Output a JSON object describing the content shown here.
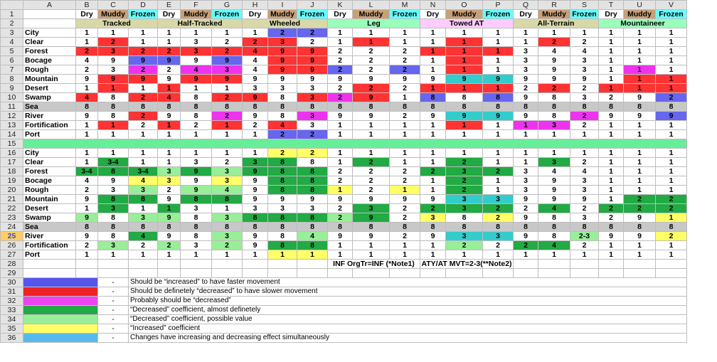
{
  "columns": [
    "A",
    "B",
    "C",
    "D",
    "E",
    "F",
    "G",
    "H",
    "I",
    "J",
    "K",
    "L",
    "M",
    "N",
    "O",
    "P",
    "Q",
    "R",
    "S",
    "T",
    "U",
    "V"
  ],
  "selected_row": 25,
  "palette": {
    "blue": "#6666ee",
    "red": "#ff3333",
    "magenta": "#ee33ee",
    "dgreen": "#22aa44",
    "lgreen": "#99ee99",
    "yellow": "#ffff66",
    "cyan": "#33cccc",
    "lcyan": "#66ccff",
    "gray": "#c8c8c8",
    "tan": "#c8a078",
    "header_cyan": "#66ffff",
    "lgreen_band": "#99ffbb",
    "pink_band": "#ffccff",
    "khaki": "#d8d8a8",
    "row15": "#66ee99",
    "legend_blue": "#5555ee",
    "legend_red": "#ee2222",
    "legend_magenta": "#ee44ee",
    "legend_dgreen": "#22aa44",
    "legend_lgreen": "#99ee99",
    "legend_yellow": "#ffff66",
    "legend_cyan": "#55bbee"
  },
  "row1": [
    "",
    "Dry",
    "Muddy",
    "Frozen",
    "Dry",
    "Muddy",
    "Frozen",
    "Dry",
    "Muddy",
    "Frozen",
    "Dry",
    "Muddy",
    "Frozen",
    "Dry",
    "Muddy",
    "Frozen",
    "Dry",
    "Muddy",
    "Frozen",
    "Dry",
    "Muddy",
    "Frozen"
  ],
  "groups": [
    {
      "label": "Tracked",
      "color": "#d8d8a8"
    },
    {
      "label": "Half-Tracked",
      "color": "#d8d8a8"
    },
    {
      "label": "Wheeled",
      "color": "#d8d8a8"
    },
    {
      "label": "Leg",
      "color": "#99ffbb"
    },
    {
      "label": "Towed AT",
      "color": "#ffccff"
    },
    {
      "label": "All-Terrain",
      "color": "#d8d8a8"
    },
    {
      "label": "Mountaineer",
      "color": "#99ffbb"
    }
  ],
  "terrains": [
    "City",
    "Clear",
    "Forest",
    "Bocage",
    "Rough",
    "Mountain",
    "Desert",
    "Swamp",
    "Sea",
    "River",
    "Fortification",
    "Port"
  ],
  "top": [
    [
      "1",
      "1",
      "1",
      "1",
      "1",
      "1",
      "1",
      "2",
      "2",
      "1",
      "1",
      "1",
      "1",
      "1",
      "1",
      "1",
      "1",
      "1",
      "1",
      "1",
      "1"
    ],
    [
      "1",
      "2",
      "1",
      "1",
      "3",
      "2",
      "2",
      "3",
      "2",
      "1",
      "1",
      "1",
      "1",
      "1",
      "1",
      "1",
      "2",
      "2",
      "1",
      "1",
      "1"
    ],
    [
      "2",
      "3",
      "2",
      "2",
      "3",
      "2",
      "4",
      "9",
      "9",
      "2",
      "2",
      "2",
      "1",
      "1",
      "1",
      "3",
      "4",
      "4",
      "1",
      "1",
      "1"
    ],
    [
      "4",
      "9",
      "9",
      "9",
      "9",
      "9",
      "4",
      "9",
      "9",
      "2",
      "2",
      "2",
      "1",
      "1",
      "1",
      "3",
      "9",
      "3",
      "1",
      "1",
      "1"
    ],
    [
      "2",
      "3",
      "2",
      "2",
      "4",
      "3",
      "4",
      "9",
      "9",
      "2",
      "2",
      "2",
      "1",
      "1",
      "1",
      "3",
      "9",
      "3",
      "1",
      "1",
      "1"
    ],
    [
      "9",
      "9",
      "9",
      "9",
      "9",
      "9",
      "9",
      "9",
      "9",
      "9",
      "9",
      "9",
      "9",
      "9",
      "9",
      "9",
      "9",
      "9",
      "1",
      "1",
      "1"
    ],
    [
      "1",
      "1",
      "1",
      "1",
      "1",
      "1",
      "3",
      "3",
      "3",
      "2",
      "2",
      "2",
      "1",
      "1",
      "1",
      "2",
      "2",
      "2",
      "1",
      "1",
      "1"
    ],
    [
      "4",
      "8",
      "2",
      "4",
      "8",
      "2",
      "9",
      "8",
      "3",
      "2",
      "9",
      "1",
      "8",
      "8",
      "8",
      "9",
      "8",
      "3",
      "2",
      "9",
      "2"
    ],
    [
      "8",
      "8",
      "8",
      "8",
      "8",
      "8",
      "8",
      "8",
      "8",
      "8",
      "8",
      "8",
      "8",
      "8",
      "8",
      "8",
      "8",
      "8",
      "8",
      "8",
      "8"
    ],
    [
      "9",
      "8",
      "2",
      "9",
      "8",
      "2",
      "9",
      "8",
      "3",
      "9",
      "9",
      "2",
      "9",
      "9",
      "9",
      "9",
      "8",
      "2",
      "9",
      "9",
      "9"
    ],
    [
      "1",
      "1",
      "2",
      "1",
      "2",
      "1",
      "2",
      "4",
      "3",
      "1",
      "1",
      "1",
      "1",
      "1",
      "1",
      "1",
      "3",
      "2",
      "1",
      "1",
      "1"
    ],
    [
      "1",
      "1",
      "1",
      "1",
      "1",
      "1",
      "1",
      "2",
      "2",
      "1",
      "1",
      "1",
      "1",
      "1",
      "1",
      "1",
      "1",
      "1",
      "1",
      "1",
      "1"
    ]
  ],
  "top_colors": [
    [
      "",
      "",
      "",
      "",
      "",
      "",
      "",
      "blue",
      "blue",
      "",
      "",
      "",
      "",
      "",
      "",
      "",
      "",
      "",
      "",
      "",
      ""
    ],
    [
      "",
      "red",
      "",
      "",
      "",
      "",
      "red",
      "red",
      "",
      "",
      "red",
      "",
      "",
      "red",
      "",
      "",
      "red",
      "",
      "",
      "",
      ""
    ],
    [
      "red",
      "red",
      "red",
      "red",
      "red",
      "red",
      "red",
      "red",
      "red",
      "",
      "",
      "",
      "red",
      "red",
      "red",
      "",
      "",
      "",
      "",
      "",
      ""
    ],
    [
      "",
      "",
      "blue",
      "blue",
      "",
      "blue",
      "",
      "red",
      "red",
      "",
      "",
      "",
      "",
      "red",
      "",
      "",
      "",
      "",
      "",
      "",
      ""
    ],
    [
      "",
      "",
      "magenta",
      "",
      "magenta",
      "magenta",
      "",
      "red",
      "red",
      "blue",
      "",
      "blue",
      "",
      "red",
      "",
      "",
      "",
      "",
      "",
      "magenta",
      ""
    ],
    [
      "",
      "red",
      "red",
      "",
      "red",
      "red",
      "",
      "",
      "",
      "",
      "",
      "",
      "",
      "cyan",
      "cyan",
      "",
      "",
      "",
      "",
      "red",
      "red"
    ],
    [
      "",
      "red",
      "",
      "red",
      "",
      "",
      "",
      "",
      "",
      "",
      "red",
      "",
      "red",
      "red",
      "red",
      "",
      "red",
      "",
      "red",
      "red",
      "red"
    ],
    [
      "red",
      "",
      "red",
      "red",
      "",
      "red",
      "red",
      "",
      "red",
      "magenta",
      "red",
      "",
      "blue",
      "",
      "blue",
      "",
      "",
      "",
      "",
      "",
      "blue"
    ],
    [
      "gray",
      "gray",
      "gray",
      "gray",
      "gray",
      "gray",
      "gray",
      "gray",
      "gray",
      "gray",
      "gray",
      "gray",
      "gray",
      "gray",
      "gray",
      "gray",
      "gray",
      "gray",
      "gray",
      "gray",
      "gray"
    ],
    [
      "",
      "",
      "red",
      "",
      "",
      "magenta",
      "",
      "",
      "magenta",
      "",
      "",
      "",
      "",
      "cyan",
      "cyan",
      "",
      "",
      "magenta",
      "",
      "",
      "blue"
    ],
    [
      "",
      "red",
      "",
      "red",
      "",
      "red",
      "",
      "red",
      "",
      "",
      "",
      "",
      "",
      "red",
      "",
      "magenta",
      "magenta",
      "",
      "",
      "",
      ""
    ],
    [
      "",
      "",
      "",
      "",
      "",
      "",
      "",
      "blue",
      "blue",
      "",
      "",
      "",
      "",
      "",
      "",
      "",
      "",
      "",
      "",
      "",
      ""
    ]
  ],
  "bottom": [
    [
      "1",
      "1",
      "1",
      "1",
      "1",
      "1",
      "1",
      "2",
      "2",
      "1",
      "1",
      "1",
      "1",
      "1",
      "1",
      "1",
      "1",
      "1",
      "1",
      "1",
      "1"
    ],
    [
      "1",
      "3-4",
      "1",
      "1",
      "3",
      "2",
      "3",
      "8",
      "8",
      "1",
      "2",
      "1",
      "1",
      "2",
      "1",
      "1",
      "3",
      "2",
      "1",
      "1",
      "1"
    ],
    [
      "3-4",
      "8",
      "3-4",
      "3",
      "9",
      "3",
      "9",
      "8",
      "8",
      "2",
      "2",
      "2",
      "2",
      "3",
      "2",
      "3",
      "4",
      "4",
      "1",
      "1",
      "1"
    ],
    [
      "4",
      "9",
      "4",
      "3",
      "9",
      "3",
      "9",
      "8",
      "8",
      "2",
      "2",
      "2",
      "1",
      "2",
      "1",
      "3",
      "9",
      "3",
      "1",
      "1",
      "1"
    ],
    [
      "2",
      "3",
      "3",
      "2",
      "9",
      "4",
      "9",
      "8",
      "8",
      "1",
      "2",
      "1",
      "1",
      "2",
      "1",
      "3",
      "9",
      "3",
      "1",
      "1",
      "1"
    ],
    [
      "9",
      "8",
      "8",
      "9",
      "8",
      "8",
      "9",
      "9",
      "9",
      "9",
      "9",
      "9",
      "9",
      "3",
      "3",
      "9",
      "9",
      "9",
      "1",
      "2",
      "2"
    ],
    [
      "1",
      "3",
      "1",
      "1",
      "3",
      "1",
      "3",
      "3",
      "3",
      "2",
      "3",
      "2",
      "2",
      "3",
      "2",
      "2",
      "4",
      "2",
      "2",
      "2",
      "2"
    ],
    [
      "9",
      "8",
      "3",
      "9",
      "8",
      "3",
      "8",
      "8",
      "8",
      "2",
      "9",
      "2",
      "3",
      "8",
      "2",
      "9",
      "8",
      "3",
      "2",
      "9",
      "1"
    ],
    [
      "8",
      "8",
      "8",
      "8",
      "8",
      "8",
      "8",
      "8",
      "8",
      "8",
      "8",
      "8",
      "8",
      "8",
      "8",
      "8",
      "8",
      "8",
      "8",
      "8",
      "8"
    ],
    [
      "9",
      "8",
      "4",
      "9",
      "8",
      "3",
      "9",
      "8",
      "4",
      "9",
      "9",
      "2",
      "9",
      "3",
      "3",
      "9",
      "8",
      "2-3",
      "9",
      "9",
      "2"
    ],
    [
      "2",
      "3",
      "2",
      "2",
      "3",
      "2",
      "9",
      "8",
      "8",
      "1",
      "1",
      "1",
      "1",
      "2",
      "2",
      "2",
      "4",
      "2",
      "1",
      "1",
      "1"
    ],
    [
      "1",
      "1",
      "1",
      "1",
      "1",
      "1",
      "1",
      "1",
      "1",
      "1",
      "1",
      "1",
      "1",
      "1",
      "1",
      "1",
      "1",
      "1",
      "1",
      "1",
      "1"
    ]
  ],
  "bottom_colors": [
    [
      "",
      "",
      "",
      "",
      "",
      "",
      "",
      "yellow",
      "yellow",
      "",
      "",
      "",
      "",
      "",
      "",
      "",
      "",
      "",
      "",
      "",
      ""
    ],
    [
      "",
      "dgreen",
      "",
      "",
      "",
      "",
      "dgreen",
      "dgreen",
      "",
      "",
      "dgreen",
      "",
      "",
      "dgreen",
      "",
      "",
      "dgreen",
      "",
      "",
      "",
      ""
    ],
    [
      "dgreen",
      "dgreen",
      "dgreen",
      "lgreen",
      "dgreen",
      "lgreen",
      "dgreen",
      "dgreen",
      "dgreen",
      "",
      "",
      "",
      "dgreen",
      "dgreen",
      "dgreen",
      "",
      "",
      "",
      "",
      "",
      ""
    ],
    [
      "",
      "",
      "yellow",
      "yellow",
      "",
      "yellow",
      "",
      "dgreen",
      "dgreen",
      "",
      "",
      "",
      "",
      "dgreen",
      "",
      "",
      "",
      "",
      "",
      "",
      ""
    ],
    [
      "",
      "",
      "lgreen",
      "",
      "lgreen",
      "lgreen",
      "",
      "dgreen",
      "dgreen",
      "yellow",
      "",
      "yellow",
      "",
      "dgreen",
      "",
      "",
      "",
      "",
      "",
      "",
      ""
    ],
    [
      "",
      "dgreen",
      "dgreen",
      "",
      "dgreen",
      "dgreen",
      "",
      "",
      "",
      "",
      "",
      "",
      "",
      "cyan",
      "cyan",
      "",
      "",
      "",
      "",
      "dgreen",
      "dgreen"
    ],
    [
      "",
      "dgreen",
      "",
      "dgreen",
      "",
      "",
      "",
      "",
      "",
      "",
      "dgreen",
      "",
      "dgreen",
      "dgreen",
      "dgreen",
      "",
      "dgreen",
      "",
      "dgreen",
      "dgreen",
      "dgreen"
    ],
    [
      "lgreen",
      "",
      "lgreen",
      "lgreen",
      "",
      "lgreen",
      "dgreen",
      "dgreen",
      "dgreen",
      "lgreen",
      "dgreen",
      "",
      "yellow",
      "",
      "yellow",
      "",
      "",
      "",
      "",
      "",
      "yellow"
    ],
    [
      "gray",
      "gray",
      "gray",
      "gray",
      "gray",
      "gray",
      "gray",
      "gray",
      "gray",
      "gray",
      "gray",
      "gray",
      "gray",
      "gray",
      "gray",
      "gray",
      "gray",
      "gray",
      "gray",
      "gray",
      "gray"
    ],
    [
      "",
      "",
      "dgreen",
      "",
      "",
      "lgreen",
      "",
      "",
      "lgreen",
      "",
      "",
      "",
      "",
      "cyan",
      "cyan",
      "",
      "",
      "lgreen",
      "",
      "",
      "yellow"
    ],
    [
      "",
      "lgreen",
      "",
      "lgreen",
      "",
      "lgreen",
      "",
      "dgreen",
      "dgreen",
      "",
      "",
      "",
      "",
      "lgreen",
      "",
      "dgreen",
      "dgreen",
      "",
      "",
      "",
      ""
    ],
    [
      "",
      "",
      "",
      "",
      "",
      "",
      "",
      "yellow",
      "yellow",
      "",
      "",
      "",
      "",
      "",
      "",
      "",
      "",
      "",
      "",
      "",
      ""
    ]
  ],
  "notes": {
    "note1": "INF OrgTr=INF (*Note1)",
    "note2": "ATY/AT MVT=2-3(**Note2)"
  },
  "legend": [
    {
      "color": "legend_blue",
      "dash": "-",
      "text": "Should be “increased” to have faster movement"
    },
    {
      "color": "legend_red",
      "dash": "-",
      "text": "Should be definetely “decreased” to have slower movement"
    },
    {
      "color": "legend_magenta",
      "dash": "-",
      "text": "Probably should be “decreased”"
    },
    {
      "color": "legend_dgreen",
      "dash": "-",
      "text": "“Decreased” coefficient, almost definetely"
    },
    {
      "color": "legend_lgreen",
      "dash": "-",
      "text": "“Decreased” coefficient, possible value"
    },
    {
      "color": "legend_yellow",
      "dash": "-",
      "text": "“Increased” coefficient"
    },
    {
      "color": "legend_cyan",
      "dash": "-",
      "text": "Changes have increasing and decreasing effect simultaneously"
    }
  ]
}
